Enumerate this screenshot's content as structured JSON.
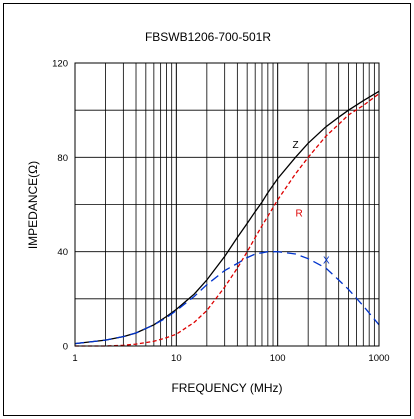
{
  "chart_data": {
    "type": "line",
    "title": "FBSWB1206-700-501R",
    "xlabel": "FREQUENCY (MHz)",
    "ylabel": "IMPEDANCE(Ω)",
    "x_scale": "log",
    "xlim": [
      1,
      1000
    ],
    "ylim": [
      0,
      120
    ],
    "grid": true,
    "x_ticks": [
      "1",
      "10",
      "100",
      "1000"
    ],
    "y_ticks": [
      "0",
      "40",
      "80",
      "120"
    ],
    "series": [
      {
        "name": "Z",
        "color": "#000000",
        "style": "solid",
        "x": [
          1,
          2,
          3,
          4,
          6,
          8,
          10,
          15,
          20,
          30,
          40,
          50,
          60,
          70,
          80,
          100,
          150,
          200,
          300,
          400,
          500,
          700,
          1000
        ],
        "y": [
          1,
          2.5,
          4,
          5.5,
          9,
          12.5,
          15.5,
          22,
          28,
          38,
          46,
          52,
          57,
          61,
          65,
          71,
          80,
          86,
          93,
          97,
          100,
          104,
          108
        ]
      },
      {
        "name": "R",
        "color": "#dd0000",
        "style": "dashed",
        "x": [
          1,
          2,
          3,
          4,
          6,
          8,
          10,
          15,
          20,
          30,
          40,
          50,
          60,
          70,
          80,
          100,
          150,
          200,
          300,
          400,
          500,
          700,
          1000
        ],
        "y": [
          0,
          0,
          0.3,
          0.8,
          2,
          3.5,
          5,
          10,
          15,
          25,
          33,
          40,
          46,
          51,
          55,
          62,
          73,
          80,
          89,
          94,
          98,
          102,
          107
        ]
      },
      {
        "name": "X",
        "color": "#0033cc",
        "style": "dashed",
        "x": [
          1,
          2,
          3,
          4,
          6,
          8,
          10,
          15,
          20,
          30,
          40,
          50,
          60,
          70,
          80,
          100,
          150,
          200,
          300,
          400,
          500,
          700,
          1000
        ],
        "y": [
          1,
          2.5,
          4,
          5.5,
          9,
          12,
          15,
          21,
          26,
          32,
          35,
          37.5,
          39,
          39.5,
          40,
          40,
          39,
          37,
          33,
          28,
          24,
          17,
          9
        ]
      }
    ]
  }
}
